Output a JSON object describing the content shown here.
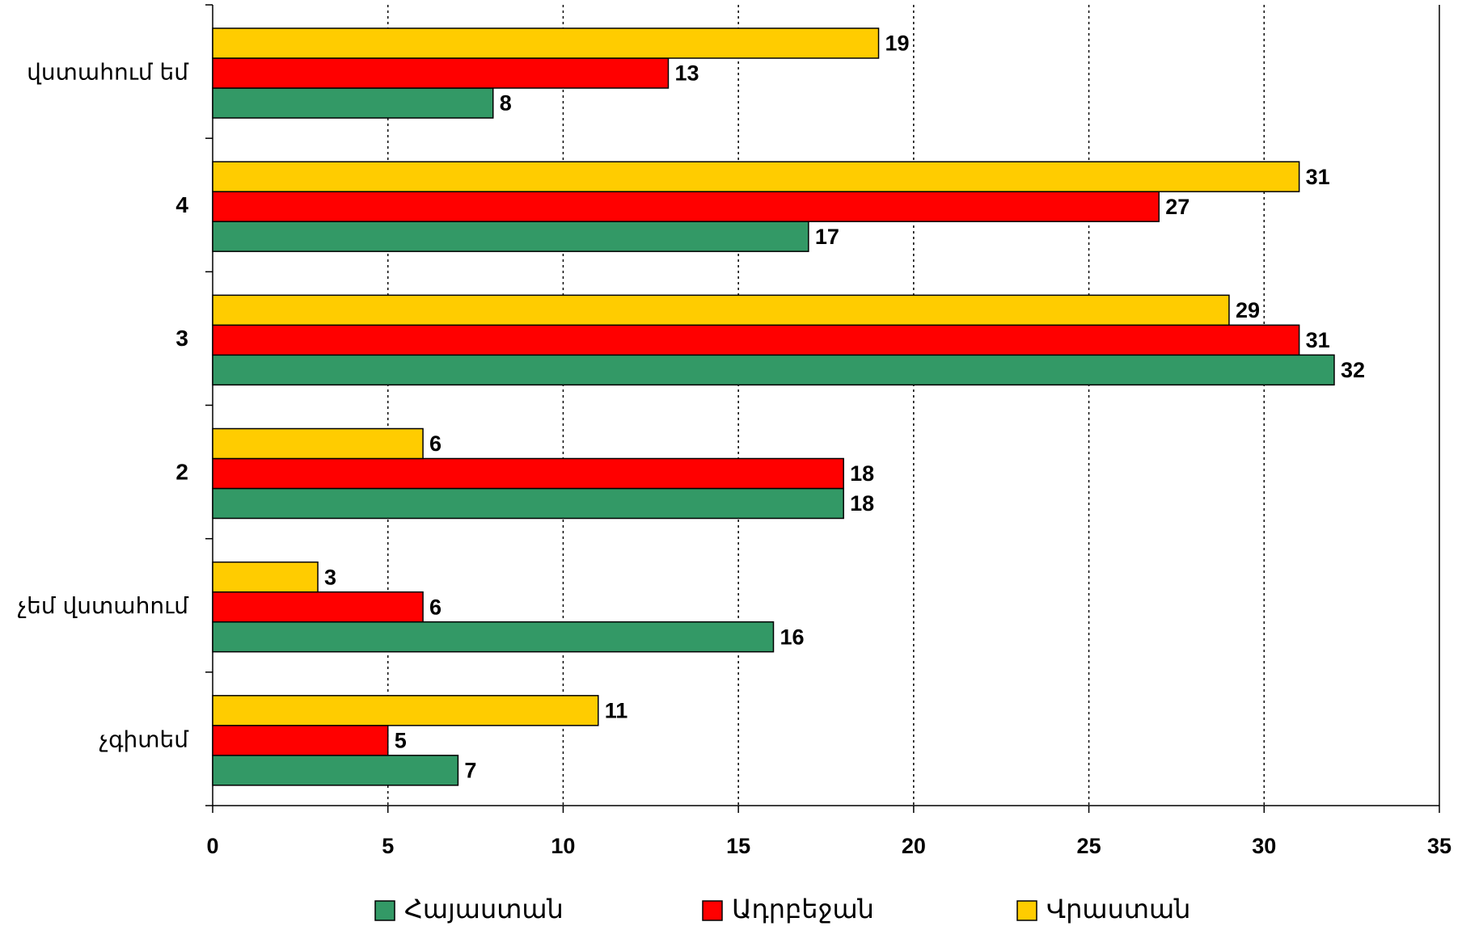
{
  "chart_data": {
    "type": "barh",
    "categories": [
      "վստահում եմ",
      "4",
      "3",
      "2",
      "չեմ վստահում",
      "չգիտեմ"
    ],
    "series": [
      {
        "name": "Հայաստան",
        "color": "#339966",
        "values": [
          8,
          17,
          32,
          18,
          16,
          7
        ]
      },
      {
        "name": "Ադրբեջան",
        "color": "#ff0000",
        "values": [
          13,
          27,
          31,
          18,
          6,
          5
        ]
      },
      {
        "name": "Վրաստան",
        "color": "#ffcc00",
        "values": [
          19,
          31,
          29,
          6,
          3,
          11
        ]
      }
    ],
    "xlim": [
      0,
      35
    ],
    "xticks": [
      0,
      5,
      10,
      15,
      20,
      25,
      30,
      35
    ],
    "grid": true,
    "legend": "bottom"
  }
}
